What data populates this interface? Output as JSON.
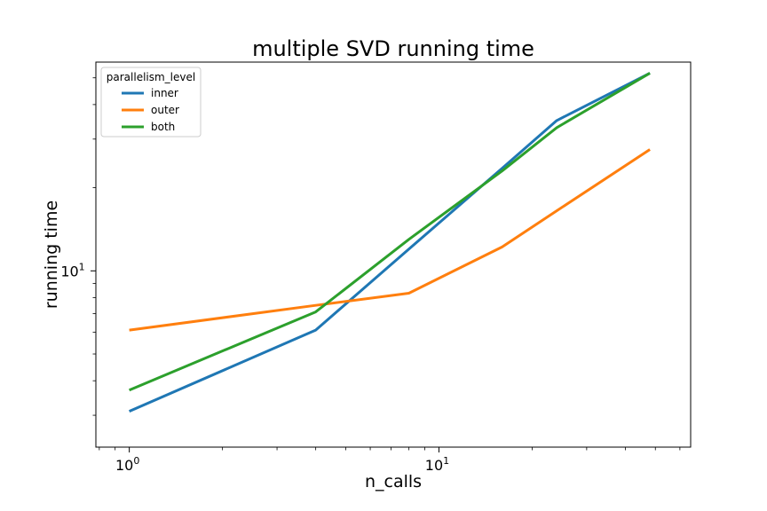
{
  "chart_data": {
    "type": "line",
    "title": "multiple SVD running time",
    "xlabel": "n_calls",
    "ylabel": "running time",
    "xscale": "log",
    "yscale": "log",
    "xlim": [
      0.78,
      65
    ],
    "ylim": [
      2.3,
      57
    ],
    "x_major_ticks": [
      1,
      10
    ],
    "y_major_ticks": [
      10
    ],
    "legend": {
      "title": "parallelism_level",
      "placement": "top-left"
    },
    "grid": false,
    "series": [
      {
        "name": "inner",
        "color": "#1f77b4",
        "x": [
          1,
          4,
          8,
          16,
          24,
          48
        ],
        "y": [
          3.1,
          6.1,
          12.0,
          23.5,
          35.0,
          52.0
        ]
      },
      {
        "name": "outer",
        "color": "#ff7f0e",
        "x": [
          1,
          4,
          8,
          16,
          24,
          48
        ],
        "y": [
          6.1,
          7.5,
          8.3,
          12.2,
          16.5,
          27.5
        ]
      },
      {
        "name": "both",
        "color": "#2ca02c",
        "x": [
          1,
          4,
          8,
          16,
          24,
          48
        ],
        "y": [
          3.7,
          7.1,
          13.0,
          23.0,
          33.0,
          52.0
        ]
      }
    ]
  }
}
